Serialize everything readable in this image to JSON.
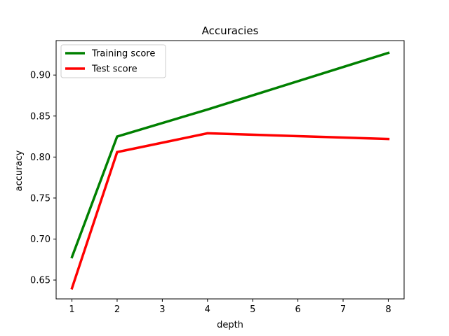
{
  "chart_data": {
    "type": "line",
    "title": "Accuracies",
    "xlabel": "depth",
    "ylabel": "accuracy",
    "x_ticks": [
      1,
      2,
      3,
      4,
      5,
      6,
      7,
      8
    ],
    "y_ticks": [
      0.65,
      0.7,
      0.75,
      0.8,
      0.85,
      0.9
    ],
    "y_tick_labels": [
      "0.65",
      "0.70",
      "0.75",
      "0.80",
      "0.85",
      "0.90"
    ],
    "xlim": [
      0.65,
      8.35
    ],
    "ylim": [
      0.627,
      0.942
    ],
    "grid": false,
    "legend_position": "upper-left",
    "series": [
      {
        "name": "Training score",
        "color": "#008000",
        "x": [
          1,
          2,
          4,
          8
        ],
        "y": [
          0.678,
          0.825,
          0.858,
          0.927
        ]
      },
      {
        "name": "Test score",
        "color": "#ff0000",
        "x": [
          1,
          2,
          4,
          8
        ],
        "y": [
          0.64,
          0.806,
          0.829,
          0.822
        ]
      }
    ]
  }
}
